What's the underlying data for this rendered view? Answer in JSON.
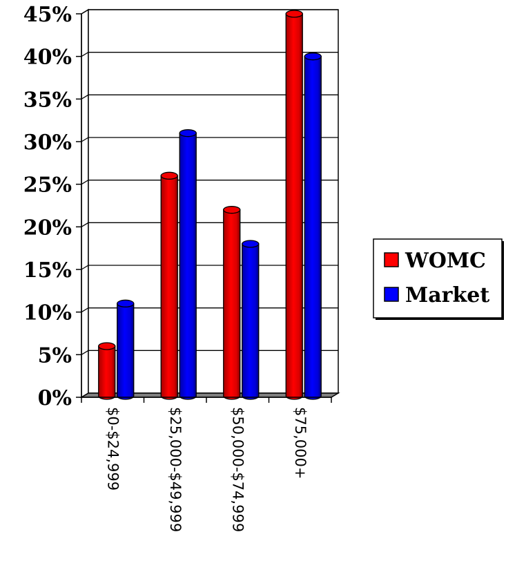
{
  "chart_data": {
    "type": "bar",
    "style": "3d-cylinder",
    "categories": [
      "$0-$24,999",
      "$25,000-$49,999",
      "$50,000-$74,999",
      "$75,000+"
    ],
    "series": [
      {
        "name": "WOMC",
        "values": [
          6,
          26,
          22,
          45
        ],
        "color": "#ff0000"
      },
      {
        "name": "Market",
        "values": [
          11,
          31,
          18,
          40
        ],
        "color": "#0000ff"
      }
    ],
    "yticks": [
      "0%",
      "5%",
      "10%",
      "15%",
      "20%",
      "25%",
      "30%",
      "35%",
      "40%",
      "45%"
    ],
    "ylim": [
      0,
      45
    ],
    "ytick_step": 5,
    "grid": true,
    "legend_position": "right",
    "title": "",
    "xlabel": "",
    "ylabel": ""
  }
}
